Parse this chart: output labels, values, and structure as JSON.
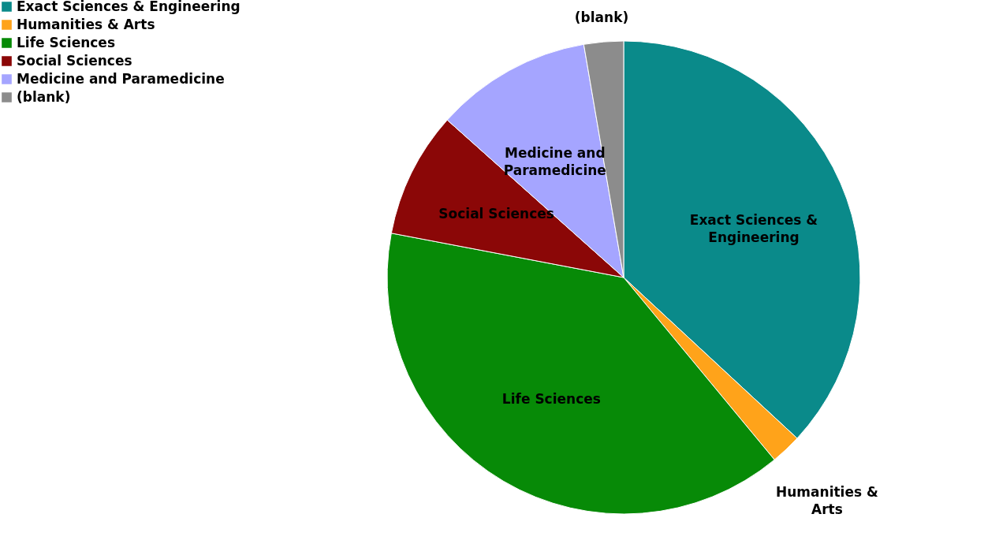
{
  "chart_data": {
    "type": "pie",
    "categories": [
      "Exact Sciences & Engineering",
      "Humanities & Arts",
      "Life Sciences",
      "Social Sciences",
      "Medicine and Paramedicine",
      "(blank)"
    ],
    "values": [
      36.9,
      2.1,
      39.0,
      8.6,
      10.7,
      2.7
    ],
    "colors": [
      "#0a8a8a",
      "#ffa31a",
      "#078a07",
      "#8b0707",
      "#a5a5ff",
      "#8c8c8c"
    ],
    "legend": "left"
  }
}
